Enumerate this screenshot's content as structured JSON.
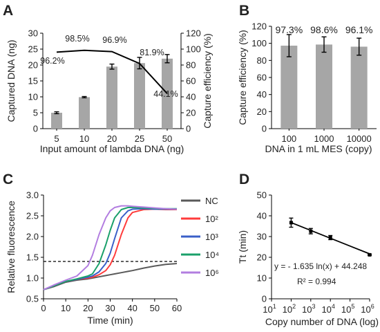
{
  "chart_data": [
    {
      "panel": "A",
      "type": "bar",
      "categories": [
        "5",
        "10",
        "20",
        "25",
        "50"
      ],
      "values": [
        5.0,
        9.9,
        19.5,
        20.6,
        22.0
      ],
      "errors": [
        0.3,
        0.2,
        0.8,
        1.8,
        1.3
      ],
      "xlabel": "Input amount of lambda DNA (ng)",
      "ylabel": "Captured DNA (ng)",
      "ylim": [
        0,
        30
      ],
      "yticks": [
        "0",
        "5",
        "10",
        "15",
        "20",
        "25",
        "30"
      ],
      "bar_color": "#a6a6a6",
      "line": {
        "type": "line",
        "values": [
          96.2,
          98.5,
          96.9,
          81.9,
          44.1
        ],
        "labels": [
          "96.2%",
          "98.5%",
          "96.9%",
          "81.9%",
          "44.1%"
        ],
        "ylabel": "Capture efficiency (%)",
        "ylim": [
          0,
          120
        ],
        "yticks": [
          "0",
          "20",
          "40",
          "60",
          "80",
          "100",
          "120"
        ],
        "color": "#000000"
      }
    },
    {
      "panel": "B",
      "type": "bar",
      "categories": [
        "100",
        "1000",
        "10000"
      ],
      "values": [
        97.3,
        98.6,
        96.1
      ],
      "errors": [
        13,
        9,
        10
      ],
      "labels": [
        "97.3%",
        "98.6%",
        "96.1%"
      ],
      "xlabel": "DNA in 1 mL MES (copy)",
      "ylabel": "Capture efficiency (%)",
      "ylim": [
        0,
        120
      ],
      "yticks": [
        "0",
        "20",
        "40",
        "60",
        "80",
        "100",
        "120"
      ],
      "bar_color": "#a6a6a6"
    },
    {
      "panel": "C",
      "type": "line",
      "x": [
        0,
        5,
        10,
        15,
        20,
        22,
        25,
        28,
        30,
        32,
        35,
        38,
        40,
        45,
        50,
        55,
        60
      ],
      "xlabel": "Time (min)",
      "ylabel": "Relative fluorescence",
      "xlim": [
        0,
        60
      ],
      "ylim": [
        0.5,
        3.0
      ],
      "xticks": [
        "0",
        "10",
        "20",
        "30",
        "40",
        "50",
        "60"
      ],
      "yticks": [
        "0.5",
        "1.0",
        "1.5",
        "2.0",
        "2.5",
        "3.0"
      ],
      "threshold": 1.4,
      "series": [
        {
          "name": "NC",
          "color": "#595959",
          "values": [
            0.72,
            0.8,
            0.9,
            0.95,
            0.98,
            1.0,
            1.03,
            1.06,
            1.08,
            1.1,
            1.13,
            1.16,
            1.18,
            1.24,
            1.29,
            1.33,
            1.35
          ]
        },
        {
          "name": "10²",
          "color": "#ff3b3b",
          "values": [
            0.72,
            0.82,
            0.92,
            0.97,
            1.0,
            1.02,
            1.08,
            1.18,
            1.32,
            1.55,
            2.05,
            2.45,
            2.58,
            2.65,
            2.66,
            2.65,
            2.65
          ]
        },
        {
          "name": "10³",
          "color": "#3a5fc8",
          "values": [
            0.72,
            0.82,
            0.92,
            0.97,
            1.02,
            1.05,
            1.15,
            1.35,
            1.6,
            1.95,
            2.45,
            2.62,
            2.66,
            2.67,
            2.66,
            2.66,
            2.66
          ]
        },
        {
          "name": "10⁴",
          "color": "#1aa06a",
          "values": [
            0.72,
            0.82,
            0.92,
            0.98,
            1.05,
            1.1,
            1.35,
            1.8,
            2.15,
            2.45,
            2.65,
            2.7,
            2.7,
            2.69,
            2.68,
            2.67,
            2.67
          ]
        },
        {
          "name": "10⁶",
          "color": "#b27de0",
          "values": [
            0.72,
            0.84,
            0.95,
            1.05,
            1.3,
            1.55,
            2.05,
            2.45,
            2.62,
            2.7,
            2.74,
            2.74,
            2.73,
            2.71,
            2.69,
            2.67,
            2.66
          ]
        }
      ]
    },
    {
      "panel": "D",
      "type": "scatter",
      "x": [
        100,
        1000,
        10000,
        1000000
      ],
      "y": [
        36.7,
        32.6,
        29.5,
        21.2
      ],
      "errors": [
        2.2,
        1.3,
        1.0,
        0.3
      ],
      "xlabel": "Copy number of DNA (log)",
      "ylabel": "Tt (min)",
      "xscale": "log",
      "xlim": [
        10,
        1000000
      ],
      "ylim": [
        0,
        50
      ],
      "xtick_exponents": [
        "1",
        "2",
        "3",
        "4",
        "5",
        "6"
      ],
      "xtick_base": "10",
      "yticks": [
        "0",
        "10",
        "20",
        "30",
        "40",
        "50"
      ],
      "fit": {
        "slope": -1.635,
        "intercept": 44.248
      },
      "equation": "y = - 1.635 ln(x) + 44.248",
      "r2": "R² = 0.994"
    }
  ]
}
